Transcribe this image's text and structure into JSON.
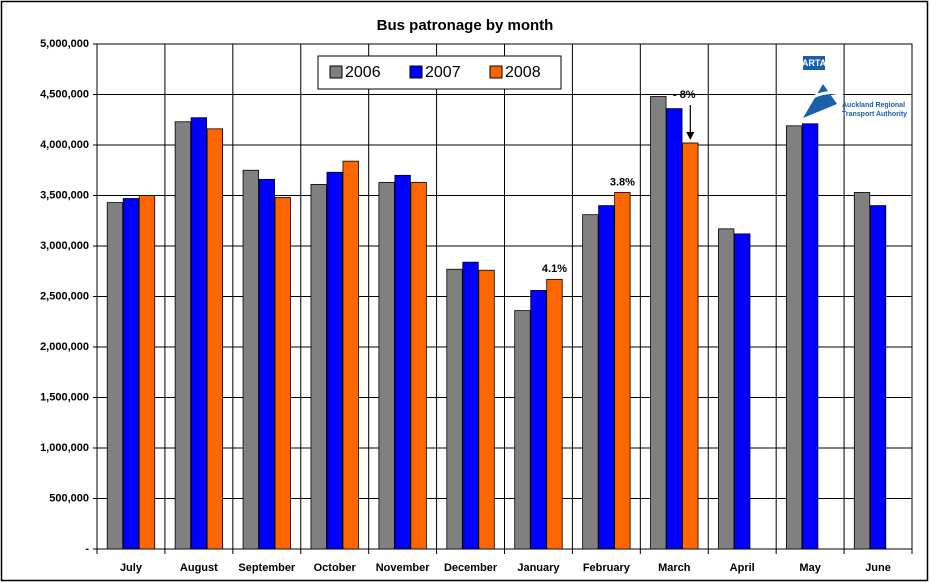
{
  "chart_data": {
    "type": "bar",
    "title": "Bus patronage by month",
    "categories": [
      "July",
      "August",
      "September",
      "October",
      "November",
      "December",
      "January",
      "February",
      "March",
      "April",
      "May",
      "June"
    ],
    "series": [
      {
        "name": "2006",
        "color": "#808080",
        "values": [
          3430000,
          4230000,
          3750000,
          3610000,
          3630000,
          2770000,
          2360000,
          3310000,
          4480000,
          3170000,
          4190000,
          3530000
        ]
      },
      {
        "name": "2007",
        "color": "#0000ff",
        "values": [
          3470000,
          4270000,
          3660000,
          3730000,
          3700000,
          2840000,
          2560000,
          3400000,
          4360000,
          3120000,
          4210000,
          3400000
        ]
      },
      {
        "name": "2008",
        "color": "#ff6600",
        "values": [
          3500000,
          4160000,
          3480000,
          3840000,
          3630000,
          2760000,
          2670000,
          3530000,
          4020000,
          null,
          null,
          null
        ]
      }
    ],
    "ylim": [
      0,
      5000000
    ],
    "yticks": [
      {
        "value": 0,
        "label": "-"
      },
      {
        "value": 500000,
        "label": "500,000"
      },
      {
        "value": 1000000,
        "label": "1,000,000"
      },
      {
        "value": 1500000,
        "label": "1,500,000"
      },
      {
        "value": 2000000,
        "label": "2,000,000"
      },
      {
        "value": 2500000,
        "label": "2,500,000"
      },
      {
        "value": 3000000,
        "label": "3,000,000"
      },
      {
        "value": 3500000,
        "label": "3,500,000"
      },
      {
        "value": 4000000,
        "label": "4,000,000"
      },
      {
        "value": 4500000,
        "label": "4,500,000"
      },
      {
        "value": 5000000,
        "label": "5,000,000"
      }
    ],
    "grid": true,
    "legend": "top",
    "annotations": [
      {
        "text": "4.1%",
        "category": "January",
        "arrow": false
      },
      {
        "text": "3.8%",
        "category": "February",
        "arrow": false
      },
      {
        "text": "- 8%",
        "category": "March",
        "arrow": true
      }
    ],
    "logo": {
      "name": "ARTA",
      "lines": [
        "Auckland Regional",
        "Transport Authority"
      ]
    }
  }
}
